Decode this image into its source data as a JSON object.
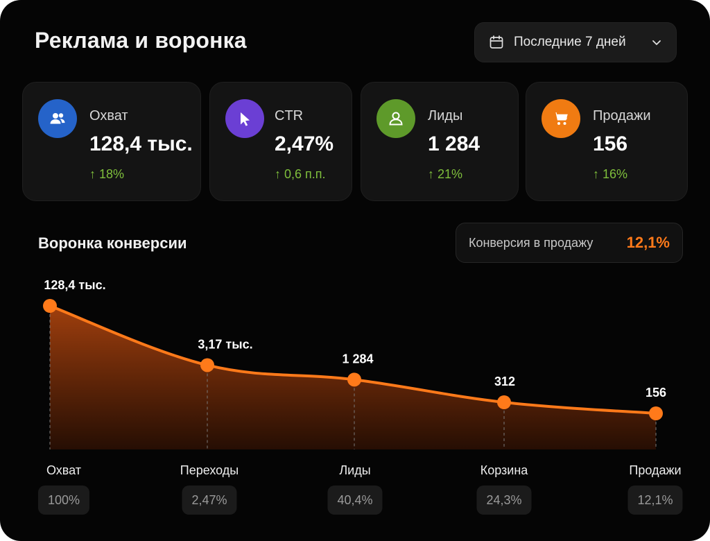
{
  "header": {
    "title": "Реклама и воронка",
    "date_filter": {
      "label": "Последние 7 дней",
      "icon": "calendar-icon",
      "dropdown_icon": "chevron-down-icon"
    }
  },
  "kpis": [
    {
      "label": "Охват",
      "value": "128,4 тыс.",
      "delta": "↑ 18%",
      "icon": "users-icon",
      "color": "#2563c9"
    },
    {
      "label": "CTR",
      "value": "2,47%",
      "delta": "↑ 0,6 п.п.",
      "icon": "cursor-icon",
      "color": "#6b3fd4"
    },
    {
      "label": "Лиды",
      "value": "1 284",
      "delta": "↑ 21%",
      "icon": "user-icon",
      "color": "#5e9a2a"
    },
    {
      "label": "Продажи",
      "value": "156",
      "delta": "↑ 16%",
      "icon": "cart-icon",
      "color": "#f07b12"
    }
  ],
  "funnel": {
    "title": "Воронка конверсии",
    "conversion_label": "Конверсия в продажу",
    "conversion_value": "12,1%",
    "accent": "#ff7a1a",
    "positive_color": "#7fbf3c"
  },
  "chart_data": {
    "type": "area",
    "categories": [
      "Охват",
      "Переходы",
      "Лиды",
      "Корзина",
      "Продажи"
    ],
    "values": [
      128400,
      3170,
      1284,
      312,
      156
    ],
    "data_labels": [
      "128,4 тыс.",
      "3,17 тыс.",
      "1 284",
      "312",
      "156"
    ],
    "percent_labels": [
      "100%",
      "2,47%",
      "40,4%",
      "24,3%",
      "12,1%"
    ],
    "scale": "log",
    "grid": false
  }
}
